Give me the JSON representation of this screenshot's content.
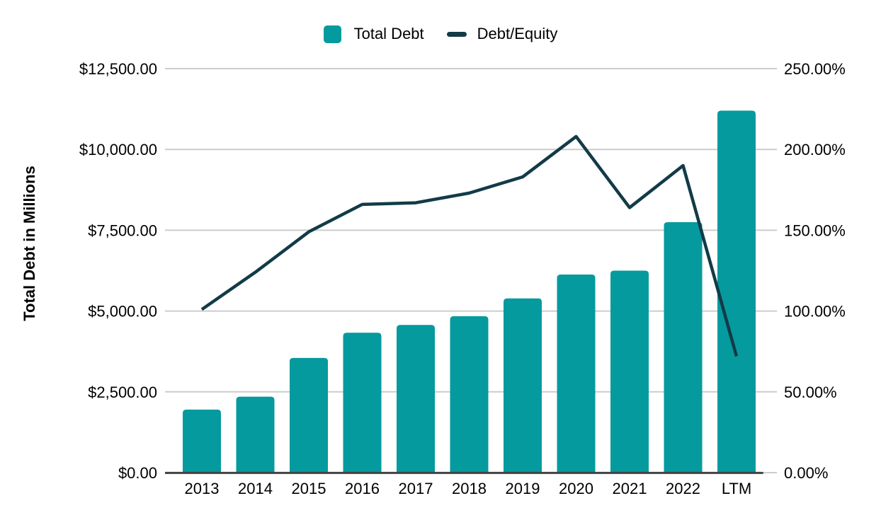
{
  "chart_data": {
    "type": "combo",
    "categories": [
      "2013",
      "2014",
      "2015",
      "2016",
      "2017",
      "2018",
      "2019",
      "2020",
      "2021",
      "2022",
      "LTM"
    ],
    "series": [
      {
        "name": "Total Debt",
        "type": "bar",
        "yaxis": "left",
        "values": [
          1950,
          2350,
          3550,
          4330,
          4570,
          4840,
          5390,
          6130,
          6250,
          7750,
          11200
        ]
      },
      {
        "name": "Debt/Equity",
        "type": "line",
        "yaxis": "right",
        "values": [
          1.01,
          1.24,
          1.49,
          1.66,
          1.67,
          1.73,
          1.83,
          2.08,
          1.64,
          1.9,
          0.72
        ]
      }
    ],
    "left_axis": {
      "label": "Total Debt in Millions",
      "min": 0,
      "max": 12500,
      "tick_labels": [
        "$0.00",
        "$2,500.00",
        "$5,000.00",
        "$7,500.00",
        "$10,000.00",
        "$12,500.00"
      ]
    },
    "right_axis": {
      "min": 0,
      "max": 2.5,
      "tick_labels": [
        "0.00%",
        "50.00%",
        "100.00%",
        "150.00%",
        "200.00%",
        "250.00%"
      ]
    },
    "legend": {
      "position": "top"
    },
    "grid": "horizontal",
    "colors": {
      "bar": "#059a9e",
      "line": "#123b47",
      "gridline": "#cccccc",
      "axis_line": "#424242",
      "text": "#000000",
      "background": "#ffffff"
    }
  }
}
